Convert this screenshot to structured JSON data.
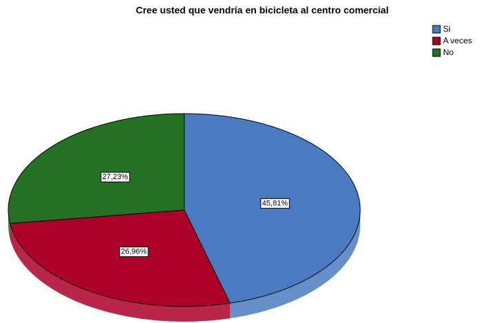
{
  "chart_data": {
    "type": "pie",
    "title": "Cree usted que vendría en bicicleta al centro comercial",
    "categories": [
      "Si",
      "A veces",
      "No"
    ],
    "values": [
      45.81,
      26.96,
      27.23
    ],
    "value_labels": [
      "45,81%",
      "26,96%",
      "27,23%"
    ],
    "colors": [
      "#4a7bc0",
      "#ad0028",
      "#237223"
    ],
    "legend": "top-right"
  }
}
